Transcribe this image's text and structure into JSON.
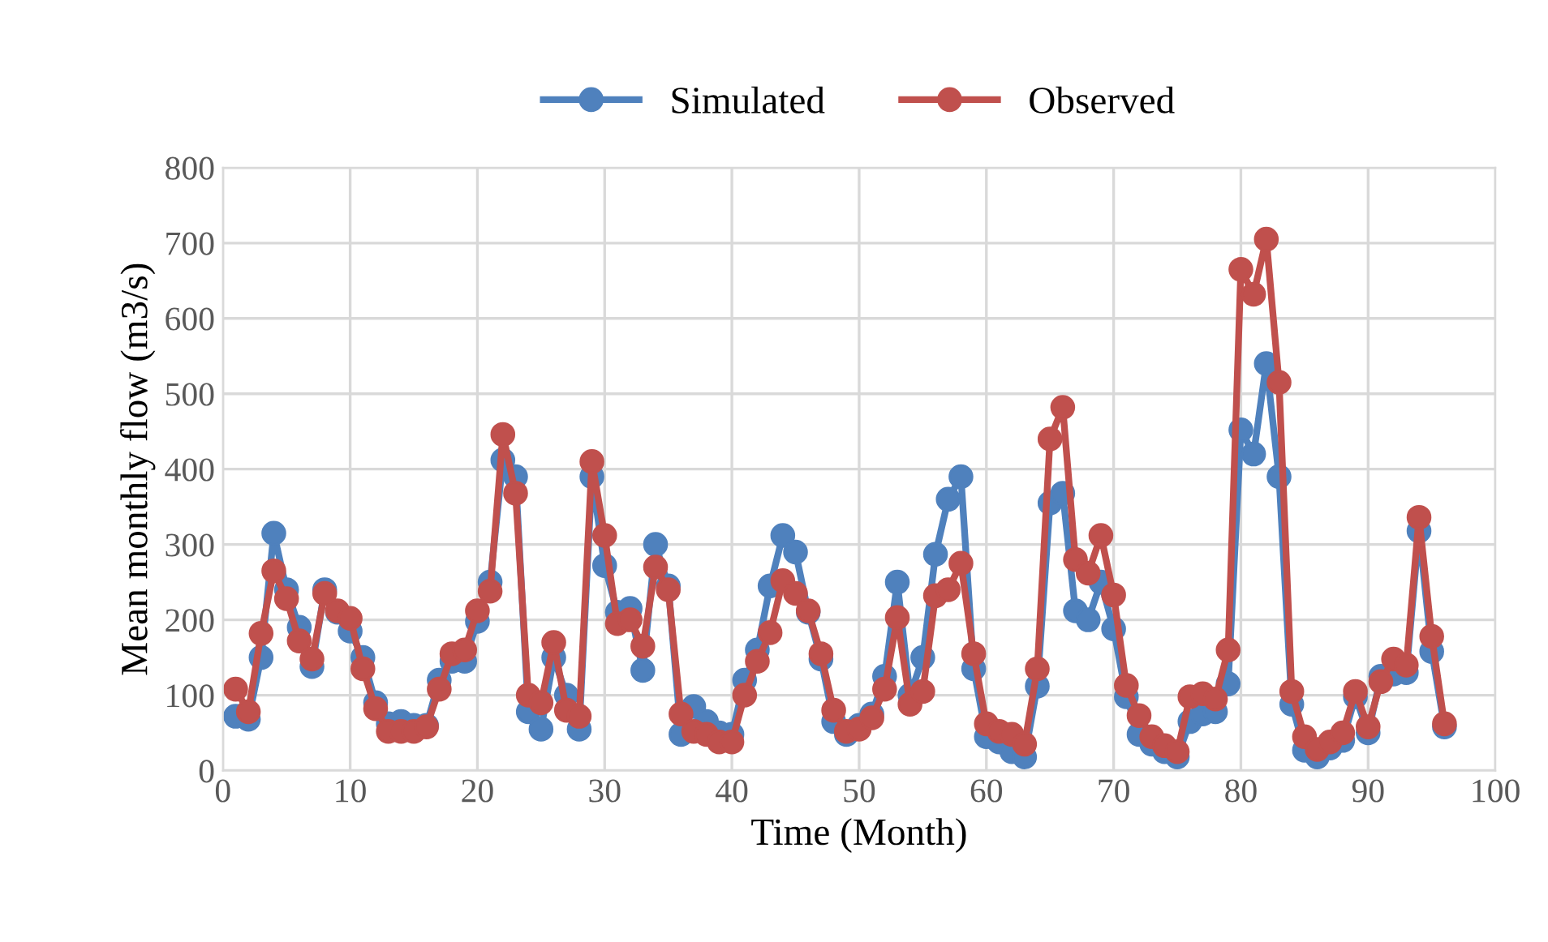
{
  "chart_data": {
    "type": "line",
    "xlabel": "Time (Month)",
    "ylabel": "Mean monthly flow (m3/s)",
    "x": [
      1,
      2,
      3,
      4,
      5,
      6,
      7,
      8,
      9,
      10,
      11,
      12,
      13,
      14,
      15,
      16,
      17,
      18,
      19,
      20,
      21,
      22,
      23,
      24,
      25,
      26,
      27,
      28,
      29,
      30,
      31,
      32,
      33,
      34,
      35,
      36,
      37,
      38,
      39,
      40,
      41,
      42,
      43,
      44,
      45,
      46,
      47,
      48,
      49,
      50,
      51,
      52,
      53,
      54,
      55,
      56,
      57,
      58,
      59,
      60,
      61,
      62,
      63,
      64,
      65,
      66,
      67,
      68,
      69,
      70,
      71,
      72,
      73,
      74,
      75,
      76,
      77,
      78,
      79,
      80,
      81,
      82,
      83,
      84,
      85,
      86,
      87,
      88,
      89,
      90,
      91,
      92,
      93,
      94,
      95,
      96
    ],
    "series": [
      {
        "name": "Simulated",
        "color": "#4f81bd",
        "values": [
          72,
          68,
          150,
          315,
          240,
          190,
          138,
          240,
          210,
          185,
          150,
          90,
          62,
          65,
          60,
          60,
          120,
          145,
          145,
          198,
          250,
          412,
          390,
          78,
          55,
          150,
          100,
          55,
          390,
          272,
          210,
          215,
          133,
          300,
          245,
          48,
          85,
          65,
          50,
          48,
          120,
          160,
          245,
          312,
          290,
          210,
          148,
          65,
          48,
          60,
          75,
          125,
          250,
          100,
          150,
          287,
          360,
          390,
          135,
          45,
          38,
          25,
          18,
          112,
          355,
          368,
          212,
          200,
          250,
          188,
          98,
          48,
          35,
          25,
          18,
          65,
          75,
          78,
          115,
          452,
          420,
          540,
          390,
          88,
          27,
          18,
          30,
          40,
          98,
          50,
          125,
          128,
          130,
          318,
          158,
          58
        ]
      },
      {
        "name": "Observed",
        "color": "#c0504d",
        "values": [
          108,
          78,
          182,
          265,
          228,
          172,
          148,
          235,
          212,
          202,
          135,
          82,
          52,
          52,
          52,
          58,
          108,
          155,
          160,
          212,
          238,
          446,
          368,
          100,
          90,
          170,
          80,
          72,
          410,
          312,
          195,
          200,
          165,
          270,
          240,
          75,
          52,
          48,
          38,
          38,
          100,
          145,
          183,
          252,
          235,
          212,
          155,
          80,
          52,
          55,
          70,
          108,
          203,
          88,
          105,
          232,
          240,
          275,
          155,
          62,
          52,
          48,
          35,
          135,
          440,
          482,
          280,
          262,
          312,
          233,
          113,
          73,
          45,
          33,
          25,
          98,
          102,
          95,
          160,
          665,
          632,
          705,
          515,
          105,
          45,
          28,
          38,
          50,
          105,
          58,
          118,
          148,
          140,
          336,
          178,
          62
        ]
      }
    ],
    "xlim": [
      0,
      100
    ],
    "xticks": [
      0,
      10,
      20,
      30,
      40,
      50,
      60,
      70,
      80,
      90,
      100
    ],
    "ylim": [
      0,
      800
    ],
    "yticks": [
      0,
      100,
      200,
      300,
      400,
      500,
      600,
      700,
      800
    ],
    "grid": true,
    "legend": "top",
    "marker": "circle",
    "line_style": "solid"
  }
}
